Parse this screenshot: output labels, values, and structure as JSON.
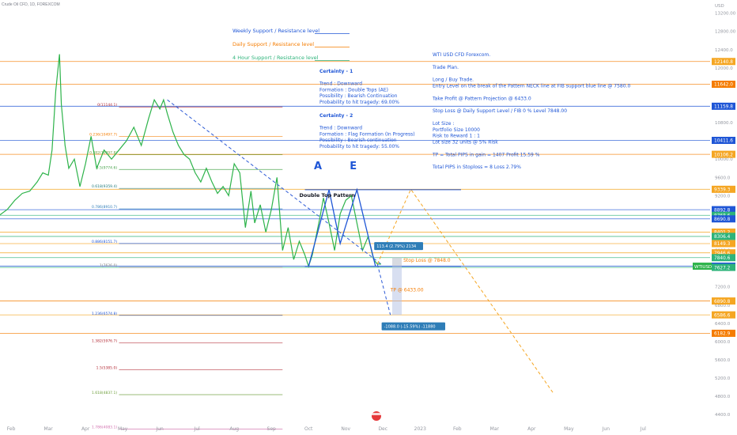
{
  "header": {
    "symbol_line": "Crude Oil CFD, 1D, FOREXCOM"
  },
  "chart_data": {
    "type": "line",
    "symbol_tag": "WTIUSD",
    "yaxis": {
      "unit_label": "USD",
      "ticks": [
        13200,
        12800,
        12400,
        12000,
        11600,
        11200,
        10800,
        10400,
        10000,
        9600,
        9200,
        8800,
        8400,
        8000,
        7600,
        7200,
        6800,
        6400,
        6000,
        5600,
        5200,
        4800,
        4400
      ],
      "tick_labels": [
        "13200.00",
        "12800.00",
        "12400.0",
        "12000.0",
        "11600.0",
        "11200.0",
        "10800.0",
        "10400.0",
        "10000.0",
        "9600.0",
        "9200.0",
        "8800.0",
        "8400.0",
        "8000.0",
        "7600.0",
        "7200.0",
        "6800.0",
        "6400.0",
        "6000.0",
        "5600.0",
        "5200.0",
        "4800.0",
        "4400.0"
      ],
      "ylim": [
        4300,
        13350
      ]
    },
    "xaxis": {
      "labels": [
        "Feb",
        "Mar",
        "Apr",
        "May",
        "Jun",
        "Jul",
        "Aug",
        "Sep",
        "Oct",
        "Nov",
        "Dec",
        "2023",
        "Feb",
        "Mar",
        "Apr",
        "May",
        "Jun",
        "Jul"
      ],
      "month_index": [
        0,
        1,
        2,
        3,
        4,
        5,
        6,
        7,
        8,
        9,
        10,
        11,
        12,
        13,
        14,
        15,
        16,
        17
      ],
      "xlim": [
        -0.3,
        18.8
      ]
    },
    "series": [
      {
        "x": [
          -0.35,
          -0.1,
          0.1,
          0.3,
          0.5,
          0.7,
          0.85,
          1.0,
          1.1,
          1.2,
          1.3,
          1.35,
          1.45,
          1.55,
          1.7,
          1.85,
          2.0,
          2.15,
          2.3,
          2.5,
          2.7,
          2.9,
          3.1,
          3.3,
          3.5,
          3.7,
          3.85,
          4.0,
          4.1,
          4.2,
          4.35,
          4.5,
          4.65,
          4.8,
          4.95,
          5.1,
          5.25,
          5.4,
          5.55,
          5.7,
          5.85,
          6.0,
          6.15,
          6.3,
          6.45,
          6.55,
          6.7,
          6.85,
          7.0,
          7.15,
          7.3,
          7.45,
          7.6,
          7.75,
          7.9,
          8.0,
          8.1,
          8.2,
          8.3,
          8.4,
          8.55,
          8.7,
          8.85,
          9.0,
          9.15,
          9.3,
          9.45,
          9.6,
          9.75,
          9.85,
          9.95
        ],
        "y": [
          8750,
          8900,
          9100,
          9250,
          9300,
          9500,
          9700,
          9650,
          10200,
          11500,
          12300,
          11200,
          10300,
          9800,
          10000,
          9400,
          9900,
          10500,
          9800,
          10200,
          10000,
          10200,
          10400,
          10700,
          10300,
          10900,
          11300,
          11100,
          11300,
          11000,
          10600,
          10300,
          10100,
          10000,
          9700,
          9500,
          9800,
          9500,
          9250,
          9400,
          9200,
          9900,
          9700,
          8500,
          9300,
          8600,
          9000,
          8400,
          8900,
          9600,
          8000,
          8500,
          7800,
          8200,
          7900,
          7650,
          7900,
          8300,
          8700,
          9150,
          8600,
          8000,
          8800,
          9100,
          9200,
          8600,
          8000,
          8300,
          7800,
          7700,
          7700
        ]
      }
    ],
    "dashed_trend": {
      "x": [
        4.2,
        9.95
      ],
      "y": [
        11300,
        7700
      ]
    },
    "projection_down": {
      "x": [
        9.85,
        10.2
      ],
      "y": [
        7700,
        6586
      ]
    },
    "projection_up_down": {
      "x": [
        9.85,
        10.75,
        14.6
      ],
      "y": [
        7700,
        9340,
        4850
      ]
    },
    "pattern": {
      "x": [
        8.0,
        8.55,
        8.85,
        9.3,
        9.8
      ],
      "y": [
        7650,
        9330,
        8150,
        9330,
        7650
      ],
      "labels": [
        {
          "text": "A",
          "x": 8.25,
          "y": 9780,
          "color": "#1f56d6"
        },
        {
          "text": "E",
          "x": 9.2,
          "y": 9780,
          "color": "#1f56d6"
        },
        {
          "text": "Double Top Pattern",
          "x": 8.5,
          "y": 9170,
          "color": "#131722"
        }
      ],
      "neck_y": 7650,
      "top_y": 9330
    },
    "fib_levels": [
      {
        "label": "0(11144.1)",
        "value": 11144,
        "color": "#b22833"
      },
      {
        "label": "0.236(10497.7)",
        "value": 10497,
        "color": "#f57c00"
      },
      {
        "label": "0.382(10097.8)",
        "value": 10097,
        "color": "#6d9e3a"
      },
      {
        "label": "0.5(9774.6)",
        "value": 9774,
        "color": "#43a047"
      },
      {
        "label": "0.618(9359.4)",
        "value": 9359,
        "color": "#1f7a7a"
      },
      {
        "label": "0.786(8910.7)",
        "value": 8910,
        "color": "#2e7db7"
      },
      {
        "label": "0.886(8151.7)",
        "value": 8151,
        "color": "#1f56d6"
      },
      {
        "label": "1(7626.0)",
        "value": 7626,
        "color": "#7e7e7e"
      },
      {
        "label": "1.236(6574.8)",
        "value": 6574,
        "color": "#1f56d6"
      },
      {
        "label": "1.382(5976.7)",
        "value": 5976,
        "color": "#b22833"
      },
      {
        "label": "1.5(5385.0)",
        "value": 5385,
        "color": "#b22833"
      },
      {
        "label": "1.618(4837.1)",
        "value": 4837,
        "color": "#6d9e3a"
      },
      {
        "label": "1.786(4083.1)",
        "value": 4083,
        "color": "#d16fae"
      }
    ],
    "levels": [
      {
        "value": 12140.8,
        "label": "12140.8",
        "color": "#f57c00",
        "bg": "#f5a623"
      },
      {
        "value": 11642.0,
        "label": "11642.0",
        "color": "#f57c00",
        "bg": "#f57c00"
      },
      {
        "value": 11159.8,
        "label": "11159.8",
        "color": "#1f56d6",
        "bg": "#1f56d6"
      },
      {
        "value": 10411.6,
        "label": "10411.6",
        "color": "#1f56d6",
        "bg": "#1f56d6"
      },
      {
        "value": 10106.2,
        "label": "10106.2",
        "color": "#f57c00",
        "bg": "#f5a623"
      },
      {
        "value": 9339.3,
        "label": "9339.3",
        "color": "#f5a623",
        "bg": "#f5a623"
      },
      {
        "value": 8892.8,
        "label": "8892.8",
        "color": "#1f56d6",
        "bg": "#1f56d6"
      },
      {
        "value": 8768.6,
        "label": "8768.6",
        "color": "#2db37a",
        "bg": "#2db37a"
      },
      {
        "value": 8690.8,
        "label": "8690.8",
        "color": "#1f56d6",
        "bg": "#1f56d6"
      },
      {
        "value": 8401.2,
        "label": "8401.2",
        "color": "#f5a623",
        "bg": "#f5a623"
      },
      {
        "value": 8306.4,
        "label": "8306.4",
        "color": "#2db37a",
        "bg": "#2db37a"
      },
      {
        "value": 8149.3,
        "label": "8149.3",
        "color": "#f5a623",
        "bg": "#f5a623"
      },
      {
        "value": 7946.6,
        "label": "7946.6",
        "color": "#f5a623",
        "bg": "#f5a623"
      },
      {
        "value": 7840.6,
        "label": "7840.6",
        "color": "#2db37a",
        "bg": "#2db37a"
      },
      {
        "value": 7653.7,
        "label": "7653.7",
        "color": "#1f56d6",
        "bg": "#1f56d6"
      },
      {
        "value": 7627.2,
        "label": "7627.2",
        "color": "#2db37a",
        "bg": "#2db37a"
      },
      {
        "value": 6890.8,
        "label": "6890.8",
        "color": "#f57c00",
        "bg": "#f5a623"
      },
      {
        "value": 6586.6,
        "label": "6586.6",
        "color": "#f5a623",
        "bg": "#f5a623"
      },
      {
        "value": 6182.9,
        "label": "6182.9",
        "color": "#f57c00",
        "bg": "#f57c00"
      }
    ],
    "last_price": {
      "value": 7653.7,
      "label": "7653.7"
    },
    "callouts": [
      {
        "text": "113.4 (2.79%) 2134",
        "x": 9.85,
        "y": 8060,
        "color": "#2e7db7"
      },
      {
        "text": "-1088.0 (-15.59%) -11880",
        "x": 10.05,
        "y": 6300,
        "color": "#2e7db7"
      }
    ],
    "annotations": [
      {
        "text": "Stop Loss @ 7848.0",
        "x": 10.55,
        "y": 7750,
        "color": "#f57c00"
      },
      {
        "text": "TP @ 6433.00",
        "x": 10.2,
        "y": 7100,
        "color": "#f57c00"
      }
    ],
    "legend": [
      {
        "text": "Weekly Support / Resistance level",
        "color": "#1f56d6",
        "line_color": "#1f56d6"
      },
      {
        "text": "Daily Support / Resistance level",
        "color": "#f57c00",
        "line_color": "#f57c00"
      },
      {
        "text": "4 Hour Support / Resistance level",
        "color": "#2db37a",
        "line_color": "#2db37a"
      }
    ],
    "certainty_blocks": [
      {
        "lines": [
          "Certainty - 1",
          "",
          "Trend : Downward",
          "Formation : Double Tops (AE)",
          "Possibility : Bearish Continuation",
          "Probability to hit tragedy: 69.00%"
        ]
      },
      {
        "lines": [
          "Certainty - 2",
          "",
          "Trend : Downward",
          "Formation : Flag Formation (In Progress)",
          "Possibility : Bearish continuation",
          "Probability to hit tragedy: 55.00%"
        ]
      }
    ],
    "trade_plan": [
      "WTI USD CFD   Forexcom.",
      "",
      "Trade Plan.",
      "",
      "Long / Buy Trade.",
      "Entry Level on the break of the Pattern NECK line at FIB  support blue line @  7580.0",
      "",
      "Take Profit @ Pattern Projection @ 6433.0",
      "",
      "Stop Loss @ Daily Support Level / FIB 0 % Level  7848.00",
      "",
      "Lot Size :",
      "Portfolio Size 10000",
      "Risk to Reward    1 : 1",
      "Lot size 32 units @  5% Risk",
      "",
      "TP  = Total PIPS in gain = 1407  Profit 15.59 %",
      "",
      "Total PIPS in Stoploss = 8    Loss 2.79%"
    ]
  }
}
